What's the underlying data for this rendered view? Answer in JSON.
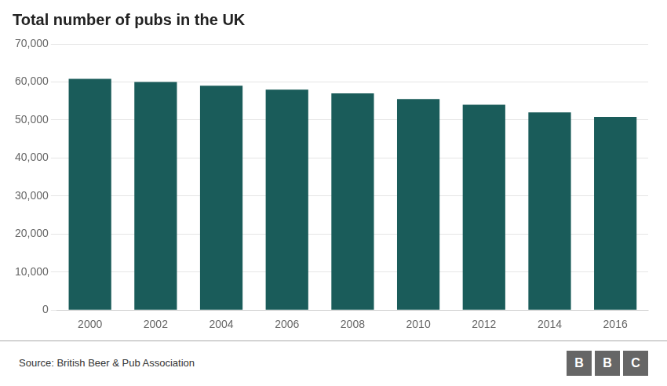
{
  "chart_data": {
    "type": "bar",
    "title": "Total number of pubs in the UK",
    "categories": [
      "2000",
      "2002",
      "2004",
      "2006",
      "2008",
      "2010",
      "2012",
      "2014",
      "2016"
    ],
    "values": [
      60800,
      60000,
      59000,
      58000,
      57000,
      55500,
      54000,
      52000,
      50800
    ],
    "color": "#1a5c5a",
    "ylim": [
      0,
      70000
    ],
    "yticks": [
      0,
      {
        "value": 10000,
        "label": "10,000"
      },
      {
        "value": 20000,
        "label": "20,000"
      },
      {
        "value": 30000,
        "label": "30,000"
      },
      {
        "value": 40000,
        "label": "40,000"
      },
      {
        "value": 50000,
        "label": "50,000"
      },
      {
        "value": 60000,
        "label": "60,000"
      },
      {
        "value": 70000,
        "label": "70,000"
      }
    ],
    "grid": true,
    "annotations": [
      "Source: British Beer & Pub Association",
      "BBC"
    ]
  }
}
